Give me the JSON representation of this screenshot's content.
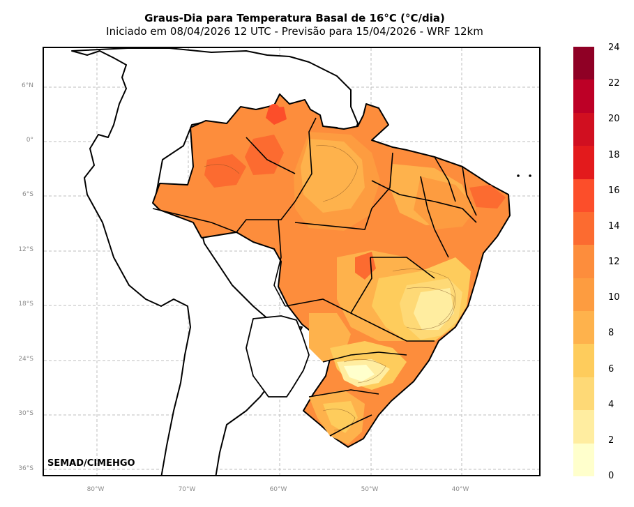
{
  "title": "Graus-Dia para Temperatura Basal de 16°C (°C/dia)",
  "subtitle": "Iniciado em 08/04/2026 12 UTC - Previsão para 15/04/2026 - WRF 12km",
  "credit": "SEMAD/CIMEHGO",
  "latitude_ticks": [
    "6°N",
    "0°",
    "6°S",
    "12°S",
    "18°S",
    "24°S",
    "30°S",
    "36°S"
  ],
  "longitude_ticks": [
    "80°W",
    "70°W",
    "60°W",
    "50°W",
    "40°W"
  ],
  "colorbar": {
    "labels": [
      "0",
      "2",
      "4",
      "6",
      "8",
      "10",
      "12",
      "14",
      "16",
      "18",
      "20",
      "22",
      "24"
    ],
    "colors": [
      "#ffffcc",
      "#ffeda0",
      "#fed976",
      "#fecc5c",
      "#feb24c",
      "#fd9c40",
      "#fd8d3c",
      "#fc6b30",
      "#fc4e2a",
      "#e31a1c",
      "#d10f20",
      "#bd0026",
      "#8f0025"
    ]
  },
  "grid": "dashed",
  "variable_range": [
    0,
    24
  ]
}
